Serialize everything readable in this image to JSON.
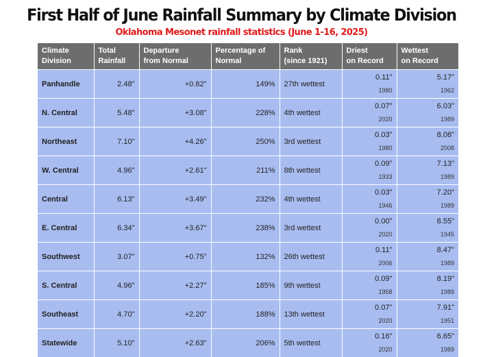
{
  "title": "First Half of June Rainfall Summary by Climate Division",
  "subtitle": "Oklahoma Mesonet rainfall statistics (June 1-16, 2025)",
  "headers": {
    "division": [
      "Climate",
      "Division"
    ],
    "total": [
      "Total",
      "Rainfall"
    ],
    "departure": [
      "Departure",
      "from Normal"
    ],
    "percent": [
      "Percentage of",
      "Normal"
    ],
    "rank": [
      "Rank",
      "(since 1921)"
    ],
    "driest": [
      "Driest",
      "on Record"
    ],
    "wettest": [
      "Wettest",
      "on Record"
    ]
  },
  "rows": [
    {
      "division": "Panhandle",
      "total": "2.48\"",
      "departure": "+0.82\"",
      "percent": "149%",
      "rank": "27th wettest",
      "driest_val": "0.11\"",
      "driest_year": "1980",
      "wettest_val": "5.17\"",
      "wettest_year": "1962"
    },
    {
      "division": "N. Central",
      "total": "5.48\"",
      "departure": "+3.08\"",
      "percent": "228%",
      "rank": "4th wettest",
      "driest_val": "0.07\"",
      "driest_year": "2020",
      "wettest_val": "6.03\"",
      "wettest_year": "1989"
    },
    {
      "division": "Northeast",
      "total": "7.10\"",
      "departure": "+4.26\"",
      "percent": "250%",
      "rank": "3rd wettest",
      "driest_val": "0.03\"",
      "driest_year": "1980",
      "wettest_val": "8.08\"",
      "wettest_year": "2008"
    },
    {
      "division": "W. Central",
      "total": "4.96\"",
      "departure": "+2.61\"",
      "percent": "211%",
      "rank": "8th wettest",
      "driest_val": "0.09\"",
      "driest_year": "1933",
      "wettest_val": "7.13\"",
      "wettest_year": "1989"
    },
    {
      "division": "Central",
      "total": "6.13\"",
      "departure": "+3.49\"",
      "percent": "232%",
      "rank": "4th wettest",
      "driest_val": "0.03\"",
      "driest_year": "1946",
      "wettest_val": "7.20\"",
      "wettest_year": "1989"
    },
    {
      "division": "E. Central",
      "total": "6.34\"",
      "departure": "+3.67\"",
      "percent": "238%",
      "rank": "3rd wettest",
      "driest_val": "0.00\"",
      "driest_year": "2020",
      "wettest_val": "8.55\"",
      "wettest_year": "1945"
    },
    {
      "division": "Southwest",
      "total": "3.07\"",
      "departure": "+0.75\"",
      "percent": "132%",
      "rank": "26th wettest",
      "driest_val": "0.11\"",
      "driest_year": "2006",
      "wettest_val": "8.47\"",
      "wettest_year": "1989"
    },
    {
      "division": "S. Central",
      "total": "4.96\"",
      "departure": "+2.27\"",
      "percent": "185%",
      "rank": "9th wettest",
      "driest_val": "0.09\"",
      "driest_year": "1958",
      "wettest_val": "8.19\"",
      "wettest_year": "1989"
    },
    {
      "division": "Southeast",
      "total": "4.70\"",
      "departure": "+2.20\"",
      "percent": "188%",
      "rank": "13th wettest",
      "driest_val": "0.07\"",
      "driest_year": "2020",
      "wettest_val": "7.91\"",
      "wettest_year": "1951"
    },
    {
      "division": "Statewide",
      "total": "5.10\"",
      "departure": "+2.63\"",
      "percent": "206%",
      "rank": "5th wettest",
      "driest_val": "0.16\"",
      "driest_year": "2020",
      "wettest_val": "6.65\"",
      "wettest_year": "1989"
    }
  ]
}
